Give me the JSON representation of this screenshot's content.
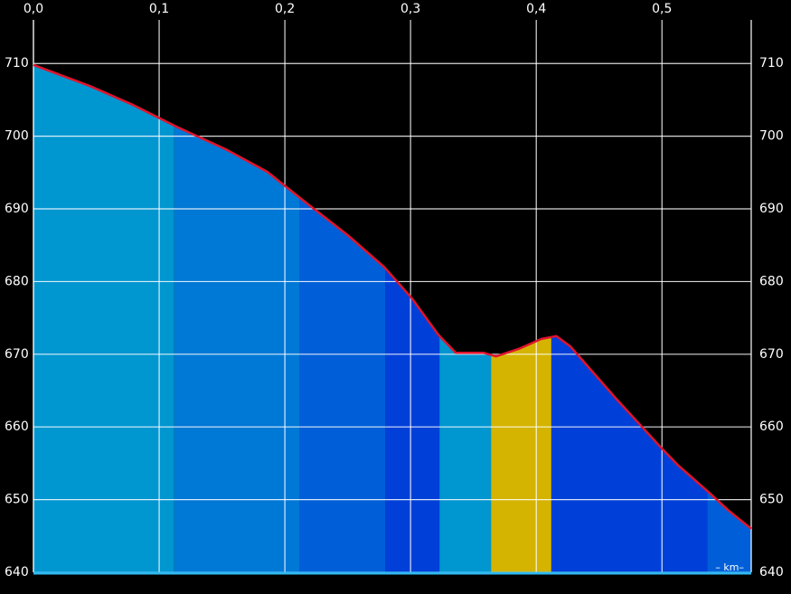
{
  "chart_data": {
    "type": "area",
    "x_unit_label": "– km–",
    "x": [
      0,
      0.045,
      0.078,
      0.114,
      0.153,
      0.186,
      0.218,
      0.25,
      0.279,
      0.301,
      0.322,
      0.336,
      0.358,
      0.368,
      0.387,
      0.404,
      0.416,
      0.427,
      0.463,
      0.499,
      0.513,
      0.538,
      0.553,
      0.571
    ],
    "values": [
      709.8,
      706.9,
      704.4,
      701.3,
      698.2,
      695.1,
      690.7,
      686.4,
      682.0,
      677.7,
      672.7,
      670.2,
      670.2,
      669.7,
      670.8,
      672.1,
      672.5,
      671.1,
      664.0,
      657.2,
      654.7,
      650.9,
      648.5,
      646.0
    ],
    "line_color": "#e0142c",
    "bands": [
      {
        "start": 0,
        "end": 0.112,
        "color": "#0096d0"
      },
      {
        "start": 0.112,
        "end": 0.212,
        "color": "#0078d6"
      },
      {
        "start": 0.212,
        "end": 0.28,
        "color": "#005fd8"
      },
      {
        "start": 0.28,
        "end": 0.323,
        "color": "#0040d8"
      },
      {
        "start": 0.323,
        "end": 0.364,
        "color": "#0096d0"
      },
      {
        "start": 0.364,
        "end": 0.412,
        "color": "#d4b400"
      },
      {
        "start": 0.412,
        "end": 0.536,
        "color": "#0040d8"
      },
      {
        "start": 0.536,
        "end": 0.571,
        "color": "#005fd8"
      }
    ],
    "xlim": [
      0,
      0.571
    ],
    "ylim": [
      640,
      716
    ],
    "xticks": [
      {
        "value": 0,
        "label": "0,0"
      },
      {
        "value": 0.1,
        "label": "0,1"
      },
      {
        "value": 0.2,
        "label": "0,2"
      },
      {
        "value": 0.3,
        "label": "0,3"
      },
      {
        "value": 0.4,
        "label": "0,4"
      },
      {
        "value": 0.5,
        "label": "0,5"
      }
    ],
    "yticks": [
      640,
      650,
      660,
      670,
      680,
      690,
      700,
      710
    ],
    "grid": true
  }
}
